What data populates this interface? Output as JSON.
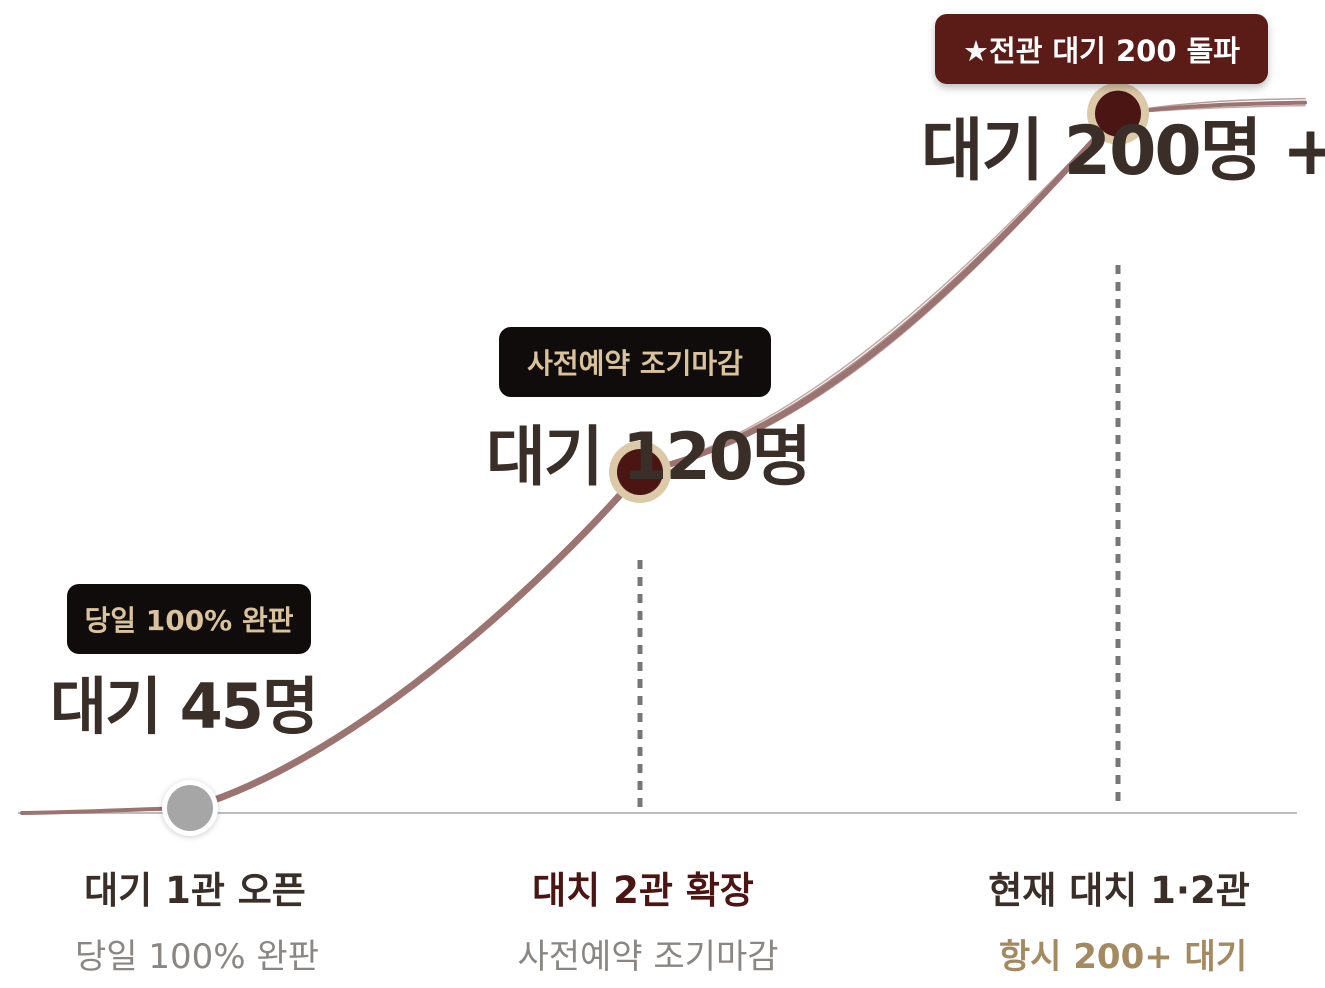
{
  "colors": {
    "curve": "#9b7370",
    "point_past": "#a6a6a6",
    "point_active": "#4a1512",
    "point_ring": "#dcc9a8",
    "badge_dark": "#0f0c0b",
    "badge_maroon": "#5b1c17",
    "badge_text_gold": "#d9c29c",
    "value_text": "#3a2e28",
    "stage_title_1": "#3a2e28",
    "stage_title_highlight": "#4a1512",
    "stage_sub": "#8a8683",
    "stage_sub_highlight": "#a48a60",
    "baseline": "#bdbdbd",
    "dashed_line": "#777777"
  },
  "chart_data": {
    "type": "line",
    "categories": [
      "대기 1관 오픈",
      "대치 2관 확장",
      "현재 대치 1·2관"
    ],
    "values": [
      45,
      120,
      200
    ],
    "value_labels": [
      "대기 45명",
      "대기 120명",
      "대기 200명 +"
    ],
    "badges": [
      "당일 100% 완판",
      "사전예약 조기마감",
      "★전관 대기 200 돌파"
    ],
    "subtitles": [
      "당일 100% 완판",
      "사전예약 조기마감",
      "항시 200+ 대기"
    ]
  }
}
